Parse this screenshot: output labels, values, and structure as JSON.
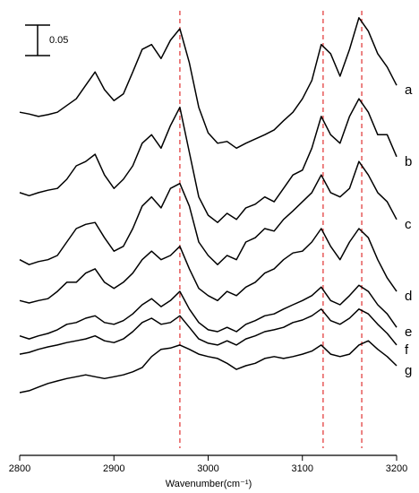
{
  "chart_data": {
    "type": "line",
    "x_label": "Wavenumber(cm⁻¹)",
    "x": [
      2800,
      2810,
      2820,
      2830,
      2840,
      2850,
      2860,
      2870,
      2880,
      2890,
      2900,
      2910,
      2920,
      2930,
      2940,
      2950,
      2960,
      2970,
      2980,
      2990,
      3000,
      3010,
      3020,
      3030,
      3040,
      3050,
      3060,
      3070,
      3080,
      3090,
      3100,
      3110,
      3120,
      3130,
      3140,
      3150,
      3160,
      3170,
      3180,
      3190,
      3200
    ],
    "series": [
      {
        "name": "a",
        "color": "#000000",
        "values": [
          0.563,
          0.56,
          0.556,
          0.559,
          0.563,
          0.574,
          0.585,
          0.607,
          0.629,
          0.6,
          0.582,
          0.593,
          0.629,
          0.666,
          0.674,
          0.651,
          0.681,
          0.7,
          0.644,
          0.571,
          0.529,
          0.512,
          0.515,
          0.504,
          0.512,
          0.519,
          0.526,
          0.534,
          0.549,
          0.563,
          0.585,
          0.615,
          0.674,
          0.659,
          0.622,
          0.666,
          0.718,
          0.696,
          0.659,
          0.637,
          0.607
        ]
      },
      {
        "name": "b",
        "color": "#000000",
        "values": [
          0.431,
          0.426,
          0.431,
          0.435,
          0.438,
          0.453,
          0.475,
          0.482,
          0.494,
          0.46,
          0.438,
          0.453,
          0.475,
          0.512,
          0.526,
          0.504,
          0.541,
          0.571,
          0.497,
          0.424,
          0.394,
          0.382,
          0.397,
          0.387,
          0.406,
          0.412,
          0.424,
          0.416,
          0.438,
          0.46,
          0.468,
          0.504,
          0.556,
          0.526,
          0.512,
          0.556,
          0.585,
          0.563,
          0.526,
          0.526,
          0.49
        ]
      },
      {
        "name": "c",
        "color": "#000000",
        "values": [
          0.321,
          0.313,
          0.318,
          0.321,
          0.328,
          0.35,
          0.372,
          0.379,
          0.382,
          0.357,
          0.335,
          0.343,
          0.372,
          0.409,
          0.424,
          0.406,
          0.438,
          0.446,
          0.409,
          0.35,
          0.328,
          0.313,
          0.328,
          0.321,
          0.35,
          0.357,
          0.372,
          0.368,
          0.387,
          0.401,
          0.416,
          0.431,
          0.46,
          0.431,
          0.424,
          0.438,
          0.482,
          0.46,
          0.431,
          0.416,
          0.387
        ]
      },
      {
        "name": "d",
        "color": "#000000",
        "values": [
          0.254,
          0.25,
          0.254,
          0.257,
          0.269,
          0.284,
          0.284,
          0.299,
          0.306,
          0.284,
          0.274,
          0.284,
          0.299,
          0.321,
          0.335,
          0.321,
          0.328,
          0.343,
          0.306,
          0.274,
          0.262,
          0.254,
          0.269,
          0.262,
          0.276,
          0.284,
          0.299,
          0.306,
          0.321,
          0.332,
          0.335,
          0.35,
          0.372,
          0.343,
          0.321,
          0.35,
          0.372,
          0.357,
          0.321,
          0.291,
          0.269
        ]
      },
      {
        "name": "e",
        "color": "#000000",
        "values": [
          0.196,
          0.191,
          0.196,
          0.2,
          0.206,
          0.215,
          0.218,
          0.225,
          0.229,
          0.218,
          0.215,
          0.221,
          0.232,
          0.247,
          0.257,
          0.244,
          0.254,
          0.269,
          0.24,
          0.218,
          0.206,
          0.203,
          0.21,
          0.203,
          0.215,
          0.221,
          0.229,
          0.232,
          0.24,
          0.247,
          0.254,
          0.262,
          0.276,
          0.254,
          0.247,
          0.262,
          0.279,
          0.269,
          0.247,
          0.232,
          0.21
        ]
      },
      {
        "name": "f",
        "color": "#000000",
        "values": [
          0.166,
          0.169,
          0.174,
          0.178,
          0.181,
          0.185,
          0.188,
          0.191,
          0.196,
          0.188,
          0.185,
          0.191,
          0.203,
          0.218,
          0.225,
          0.215,
          0.218,
          0.229,
          0.21,
          0.191,
          0.184,
          0.181,
          0.188,
          0.181,
          0.191,
          0.196,
          0.203,
          0.206,
          0.21,
          0.218,
          0.222,
          0.229,
          0.24,
          0.221,
          0.215,
          0.225,
          0.24,
          0.232,
          0.215,
          0.2,
          0.181
        ]
      },
      {
        "name": "g",
        "color": "#000000",
        "values": [
          0.103,
          0.106,
          0.112,
          0.118,
          0.122,
          0.126,
          0.129,
          0.132,
          0.129,
          0.126,
          0.129,
          0.132,
          0.137,
          0.144,
          0.162,
          0.174,
          0.176,
          0.181,
          0.174,
          0.166,
          0.162,
          0.159,
          0.151,
          0.141,
          0.147,
          0.151,
          0.159,
          0.162,
          0.159,
          0.162,
          0.166,
          0.171,
          0.181,
          0.166,
          0.162,
          0.166,
          0.181,
          0.188,
          0.174,
          0.162,
          0.147
        ]
      }
    ],
    "xlim": [
      2800,
      3200
    ],
    "xticks": [
      2800,
      2900,
      3000,
      3100,
      3200
    ],
    "ylim": [
      0,
      0.75
    ],
    "reference_lines": [
      2970,
      3122,
      3163
    ],
    "reference_color": "#e03030",
    "scale_bar": 0.05
  }
}
